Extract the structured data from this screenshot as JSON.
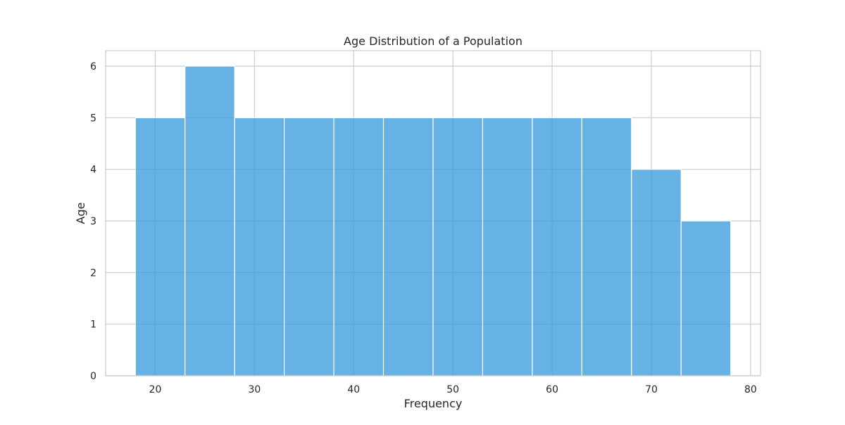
{
  "chart_data": {
    "type": "bar",
    "title": "Age Distribution of a Population",
    "xlabel": "Frequency",
    "ylabel": "Age",
    "xlim": [
      15,
      81
    ],
    "ylim": [
      0,
      6.3
    ],
    "x_ticks": [
      20,
      30,
      40,
      50,
      60,
      70,
      80
    ],
    "y_ticks": [
      0,
      1,
      2,
      3,
      4,
      5,
      6
    ],
    "bins": [
      {
        "start": 18,
        "end": 23,
        "count": 5
      },
      {
        "start": 23,
        "end": 28,
        "count": 6
      },
      {
        "start": 28,
        "end": 33,
        "count": 5
      },
      {
        "start": 33,
        "end": 38,
        "count": 5
      },
      {
        "start": 38,
        "end": 43,
        "count": 5
      },
      {
        "start": 43,
        "end": 48,
        "count": 5
      },
      {
        "start": 48,
        "end": 53,
        "count": 5
      },
      {
        "start": 53,
        "end": 58,
        "count": 5
      },
      {
        "start": 58,
        "end": 63,
        "count": 5
      },
      {
        "start": 63,
        "end": 68,
        "count": 5
      },
      {
        "start": 68,
        "end": 73,
        "count": 4
      },
      {
        "start": 73,
        "end": 78,
        "count": 3
      }
    ],
    "grid": true,
    "colors": {
      "bar_fill": "#3498db",
      "bar_edge": "#ffffff",
      "grid": "#cccccc",
      "axes_edge": "#cccccc",
      "text": "#262626"
    }
  }
}
